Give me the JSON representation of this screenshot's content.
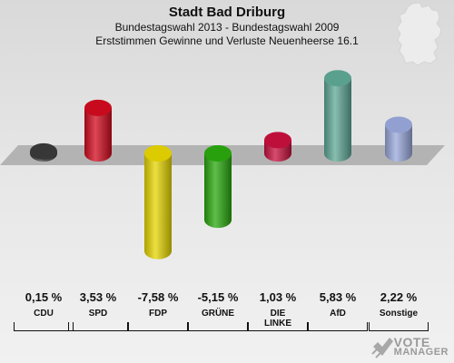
{
  "header": {
    "title": "Stadt Bad Driburg",
    "subtitle": "Bundestagswahl 2013 - Bundestagswahl 2009",
    "description": "Erststimmen Gewinne und Verluste Neuenheerse 16.1"
  },
  "chart_data": {
    "type": "bar",
    "title": "Stadt Bad Driburg",
    "subtitle": "Bundestagswahl 2013 - Bundestagswahl 2009",
    "categories": [
      "CDU",
      "SPD",
      "FDP",
      "GRÜNE",
      "DIE LINKE",
      "AfD",
      "Sonstige"
    ],
    "labels": [
      "CDU",
      "SPD",
      "FDP",
      "GRÜNE",
      "DIE\nLINKE",
      "AfD",
      "Sonstige"
    ],
    "values": [
      0.15,
      3.53,
      -7.58,
      -5.15,
      1.03,
      5.83,
      2.22
    ],
    "value_labels": [
      "0,15 %",
      "3,53 %",
      "-7,58 %",
      "-5,15 %",
      "1,03 %",
      "5,83 %",
      "2,22 %"
    ],
    "colors": [
      "#3a3a3a",
      "#d10a1e",
      "#e6d600",
      "#2aa80e",
      "#c8103e",
      "#5fa896",
      "#9aa8dc"
    ],
    "ylim": [
      -7.58,
      5.83
    ]
  },
  "logo": {
    "line1": "VOTE",
    "line2": "MANAGER"
  }
}
